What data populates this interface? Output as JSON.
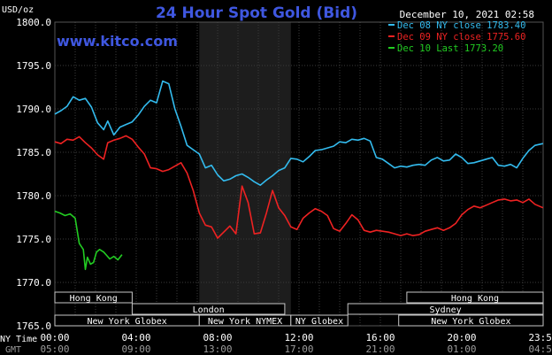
{
  "chart_data": {
    "type": "line",
    "title": "24 Hour Spot Gold (Bid)",
    "brand": "www.kitco.com",
    "timestamp": "December 10, 2021 02:58",
    "ylabel": "USD/oz",
    "ylim": [
      1765.0,
      1800.0
    ],
    "yticks": [
      "1800.0",
      "1795.0",
      "1790.0",
      "1785.0",
      "1780.0",
      "1775.0",
      "1770.0",
      "1765.0"
    ],
    "grid": true,
    "legend_position": "top-right",
    "xlim_hours": [
      0,
      24
    ],
    "ny_time_label": "NY Time",
    "gmt_label": "GMT",
    "x_ticks_ny": [
      "00:00",
      "04:00",
      "08:00",
      "12:00",
      "16:00",
      "20:00",
      "23:59"
    ],
    "x_ticks_gmt": [
      "05:00",
      "09:00",
      "13:00",
      "17:00",
      "21:00",
      "01:00",
      "04:59"
    ],
    "x_tick_hours": [
      0,
      4,
      8,
      12,
      16,
      20,
      24
    ],
    "shaded_hours": [
      7.1,
      11.6
    ],
    "sessions": [
      {
        "label": "Hong Kong",
        "start": 0,
        "end": 3.8,
        "row": 0
      },
      {
        "label": "Hong Kong",
        "start": 17.3,
        "end": 24,
        "row": 0
      },
      {
        "label": "London",
        "start": 3.8,
        "end": 11.3,
        "row": 1
      },
      {
        "label": "Sydney",
        "start": 14.4,
        "end": 24,
        "row": 1
      },
      {
        "label": "New York Globex",
        "start": 0,
        "end": 7.1,
        "row": 2
      },
      {
        "label": "New York NYMEX",
        "start": 7.1,
        "end": 11.6,
        "row": 2
      },
      {
        "label": "NY Globex",
        "start": 11.6,
        "end": 14.4,
        "row": 2
      },
      {
        "label": "New York Globex",
        "start": 16.9,
        "end": 24,
        "row": 2
      }
    ],
    "series": [
      {
        "name": "Dec 08 NY close 1783.40",
        "color": "#33bbee",
        "x": [
          0,
          0.3,
          0.6,
          0.9,
          1.2,
          1.5,
          1.8,
          2.1,
          2.4,
          2.6,
          2.9,
          3.2,
          3.5,
          3.8,
          4.1,
          4.4,
          4.7,
          5.0,
          5.3,
          5.6,
          5.9,
          6.2,
          6.5,
          6.8,
          7.1,
          7.4,
          7.7,
          8.0,
          8.3,
          8.6,
          8.9,
          9.2,
          9.5,
          9.8,
          10.1,
          10.4,
          10.7,
          11.0,
          11.3,
          11.6,
          11.9,
          12.2,
          12.5,
          12.8,
          13.1,
          13.4,
          13.7,
          14.0,
          14.3,
          14.6,
          14.9,
          15.2,
          15.5,
          15.8,
          16.1,
          16.4,
          16.7,
          17.0,
          17.3,
          17.6,
          17.9,
          18.2,
          18.5,
          18.8,
          19.1,
          19.4,
          19.7,
          20.0,
          20.3,
          20.6,
          20.9,
          21.2,
          21.5,
          21.8,
          22.1,
          22.4,
          22.7,
          23.0,
          23.3,
          23.6,
          23.99
        ],
        "values": [
          1789.4,
          1789.8,
          1790.3,
          1791.4,
          1791.0,
          1791.2,
          1790.2,
          1788.4,
          1787.6,
          1788.6,
          1787.0,
          1787.9,
          1788.2,
          1788.5,
          1789.3,
          1790.3,
          1791.0,
          1790.7,
          1793.2,
          1792.9,
          1790.0,
          1788.0,
          1785.8,
          1785.3,
          1784.8,
          1783.2,
          1783.5,
          1782.4,
          1781.7,
          1781.9,
          1782.3,
          1782.5,
          1782.1,
          1781.6,
          1781.2,
          1781.8,
          1782.3,
          1782.9,
          1783.2,
          1784.3,
          1784.2,
          1783.9,
          1784.5,
          1785.2,
          1785.3,
          1785.5,
          1785.7,
          1786.2,
          1786.1,
          1786.5,
          1786.4,
          1786.6,
          1786.3,
          1784.4,
          1784.2,
          1783.7,
          1783.2,
          1783.4,
          1783.3,
          1783.5,
          1783.6,
          1783.5,
          1784.1,
          1784.4,
          1784.0,
          1784.1,
          1784.8,
          1784.4,
          1783.7,
          1783.8,
          1784.0,
          1784.2,
          1784.4,
          1783.5,
          1783.4,
          1783.6,
          1783.2,
          1784.3,
          1785.2,
          1785.8,
          1786.0
        ]
      },
      {
        "name": "Dec 09 NY close 1775.60",
        "color": "#ee2222",
        "x": [
          0,
          0.3,
          0.6,
          0.9,
          1.2,
          1.5,
          1.8,
          2.1,
          2.4,
          2.6,
          2.9,
          3.2,
          3.5,
          3.8,
          4.1,
          4.4,
          4.7,
          5.0,
          5.3,
          5.6,
          5.9,
          6.2,
          6.5,
          6.8,
          7.1,
          7.4,
          7.7,
          8.0,
          8.3,
          8.6,
          8.9,
          9.2,
          9.5,
          9.8,
          10.1,
          10.4,
          10.7,
          11.0,
          11.3,
          11.6,
          11.9,
          12.2,
          12.5,
          12.8,
          13.1,
          13.4,
          13.7,
          14.0,
          14.3,
          14.6,
          14.9,
          15.2,
          15.5,
          15.8,
          16.1,
          16.4,
          16.7,
          17.0,
          17.3,
          17.6,
          17.9,
          18.2,
          18.5,
          18.8,
          19.1,
          19.4,
          19.7,
          20.0,
          20.3,
          20.6,
          20.9,
          21.2,
          21.5,
          21.8,
          22.1,
          22.4,
          22.7,
          23.0,
          23.3,
          23.6,
          23.99
        ],
        "values": [
          1786.2,
          1786.0,
          1786.5,
          1786.4,
          1786.8,
          1786.1,
          1785.5,
          1784.7,
          1784.2,
          1786.1,
          1786.4,
          1786.6,
          1786.9,
          1786.5,
          1785.6,
          1784.8,
          1783.2,
          1783.1,
          1782.8,
          1783.0,
          1783.4,
          1783.8,
          1782.6,
          1780.6,
          1778.0,
          1776.6,
          1776.4,
          1775.1,
          1775.8,
          1776.5,
          1775.6,
          1781.1,
          1779.2,
          1775.6,
          1775.7,
          1778.0,
          1780.6,
          1778.6,
          1777.7,
          1776.4,
          1776.1,
          1777.4,
          1778.0,
          1778.5,
          1778.2,
          1777.7,
          1776.2,
          1775.9,
          1776.8,
          1777.8,
          1777.2,
          1776.0,
          1775.8,
          1776.0,
          1775.9,
          1775.8,
          1775.6,
          1775.4,
          1775.6,
          1775.4,
          1775.5,
          1775.9,
          1776.1,
          1776.3,
          1776.0,
          1776.3,
          1776.8,
          1777.8,
          1778.4,
          1778.8,
          1778.6,
          1778.9,
          1779.2,
          1779.5,
          1779.6,
          1779.4,
          1779.5,
          1779.2,
          1779.6,
          1779.0,
          1778.6
        ]
      },
      {
        "name": "Dec 10 Last 1773.20",
        "color": "#22cc22",
        "x": [
          0,
          0.25,
          0.5,
          0.75,
          1.0,
          1.2,
          1.4,
          1.5,
          1.6,
          1.75,
          1.9,
          2.05,
          2.2,
          2.4,
          2.55,
          2.7,
          2.9,
          3.1,
          3.3
        ],
        "values": [
          1778.2,
          1778.0,
          1777.7,
          1777.9,
          1777.4,
          1774.5,
          1773.8,
          1771.5,
          1772.9,
          1772.1,
          1772.3,
          1773.5,
          1773.8,
          1773.5,
          1773.1,
          1772.7,
          1773.0,
          1772.6,
          1773.2
        ]
      }
    ]
  }
}
